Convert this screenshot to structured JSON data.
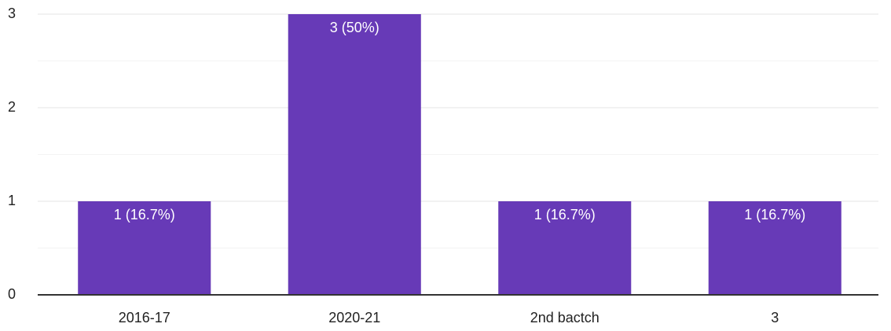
{
  "chart_data": {
    "type": "bar",
    "categories": [
      "2016-17",
      "2020-21",
      "2nd bactch",
      "3"
    ],
    "values": [
      1,
      3,
      1,
      1
    ],
    "value_labels": [
      "1 (16.7%)",
      "3 (50%)",
      "1 (16.7%)",
      "1 (16.7%)"
    ],
    "color": "#673ab7",
    "ylim": [
      0,
      3
    ],
    "yticks": [
      0,
      1,
      2,
      3
    ],
    "minor_yticks": [
      0.5,
      1.5,
      2.5
    ],
    "grid": true
  }
}
